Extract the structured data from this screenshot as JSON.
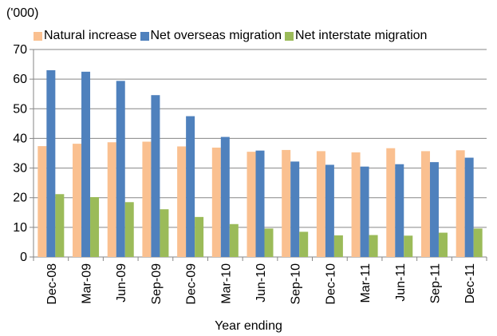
{
  "chart_data": {
    "type": "bar",
    "unit_label": "('000)",
    "xlabel": "Year ending",
    "ylabel": "",
    "ylim": [
      0,
      70
    ],
    "yticks": [
      0,
      10,
      20,
      30,
      40,
      50,
      60,
      70
    ],
    "grid": true,
    "legend_position": "top",
    "categories": [
      "Dec-08",
      "Mar-09",
      "Jun-09",
      "Sep-09",
      "Dec-09",
      "Mar-10",
      "Jun-10",
      "Sep-10",
      "Dec-10",
      "Mar-11",
      "Jun-11",
      "Sep-11",
      "Dec-11"
    ],
    "series": [
      {
        "name": "Natural increase",
        "color": "#FAC090",
        "values": [
          37.4,
          38.2,
          38.7,
          38.9,
          37.3,
          36.9,
          35.5,
          36.1,
          35.7,
          35.3,
          36.7,
          35.7,
          36.0
        ]
      },
      {
        "name": "Net overseas migration",
        "color": "#4F81BD",
        "values": [
          63.0,
          62.5,
          59.4,
          54.6,
          47.5,
          40.5,
          35.9,
          32.2,
          31.1,
          30.5,
          31.3,
          32.0,
          33.5
        ]
      },
      {
        "name": "Net interstate migration",
        "color": "#9BBB59",
        "values": [
          21.2,
          20.2,
          18.5,
          16.1,
          13.5,
          11.1,
          9.6,
          8.5,
          7.3,
          7.4,
          7.2,
          8.2,
          9.6
        ]
      }
    ]
  }
}
